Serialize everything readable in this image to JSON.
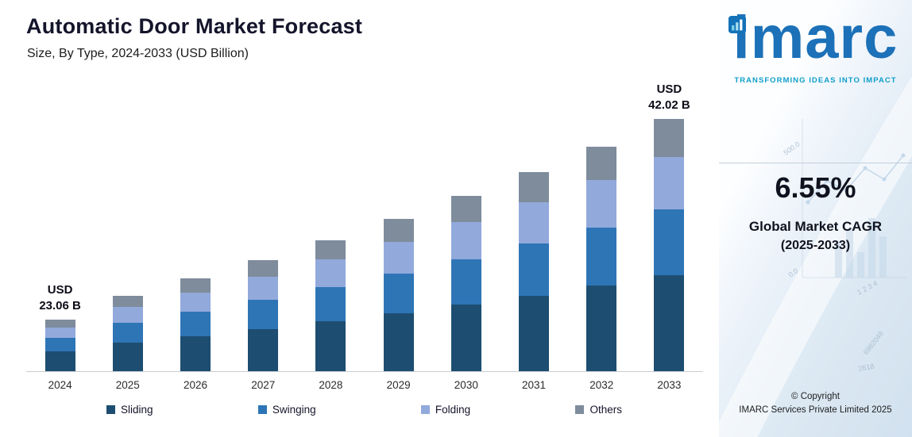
{
  "header": {
    "title": "Automatic Door Market Forecast",
    "subtitle": "Size, By Type, 2024-2033 (USD Billion)"
  },
  "chart_data": {
    "type": "bar",
    "stacked": true,
    "unit": "USD Billion",
    "grid": false,
    "legend_position": "bottom",
    "categories": [
      "2024",
      "2025",
      "2026",
      "2027",
      "2028",
      "2029",
      "2030",
      "2031",
      "2032",
      "2033"
    ],
    "series": [
      {
        "name": "Sliding",
        "color": "#1d4d70",
        "values": [
          8.76,
          9.61,
          10.24,
          10.91,
          11.62,
          12.39,
          13.2,
          14.06,
          14.98,
          15.97
        ]
      },
      {
        "name": "Swinging",
        "color": "#2e75b6",
        "values": [
          6.0,
          6.58,
          7.01,
          7.46,
          7.95,
          8.48,
          9.03,
          9.62,
          10.25,
          10.93
        ]
      },
      {
        "name": "Folding",
        "color": "#92a9dc",
        "values": [
          4.84,
          5.31,
          5.66,
          6.03,
          6.43,
          6.84,
          7.29,
          7.77,
          8.28,
          8.82
        ]
      },
      {
        "name": "Others",
        "color": "#7e8c9c",
        "values": [
          3.46,
          3.79,
          4.04,
          4.31,
          4.59,
          4.89,
          5.21,
          5.56,
          5.92,
          6.3
        ]
      }
    ],
    "totals": [
      23.06,
      25.29,
      26.95,
      28.71,
      30.59,
      32.6,
      34.73,
      37.01,
      39.43,
      42.02
    ],
    "annotations": [
      {
        "category": "2024",
        "lines": [
          "USD",
          "23.06 B"
        ]
      },
      {
        "category": "2033",
        "lines": [
          "USD",
          "42.02 B"
        ]
      }
    ]
  },
  "sidebar": {
    "logo_text": "imarc",
    "tagline": "TRANSFORMING IDEAS INTO IMPACT",
    "cagr_value": "6.55%",
    "cagr_label_line1": "Global Market CAGR",
    "cagr_label_line2": "(2025-2033)",
    "copyright_line1": "© Copyright",
    "copyright_line2": "IMARC Services Private Limited 2025",
    "colors": {
      "logo_blue": "#1c71b8",
      "tagline_teal": "#0f9ec9"
    },
    "decor": {
      "v1": "500.0",
      "v2": "0.0",
      "v3": "1 2 3 4",
      "v4": "6982048",
      "v5": "2618"
    }
  }
}
